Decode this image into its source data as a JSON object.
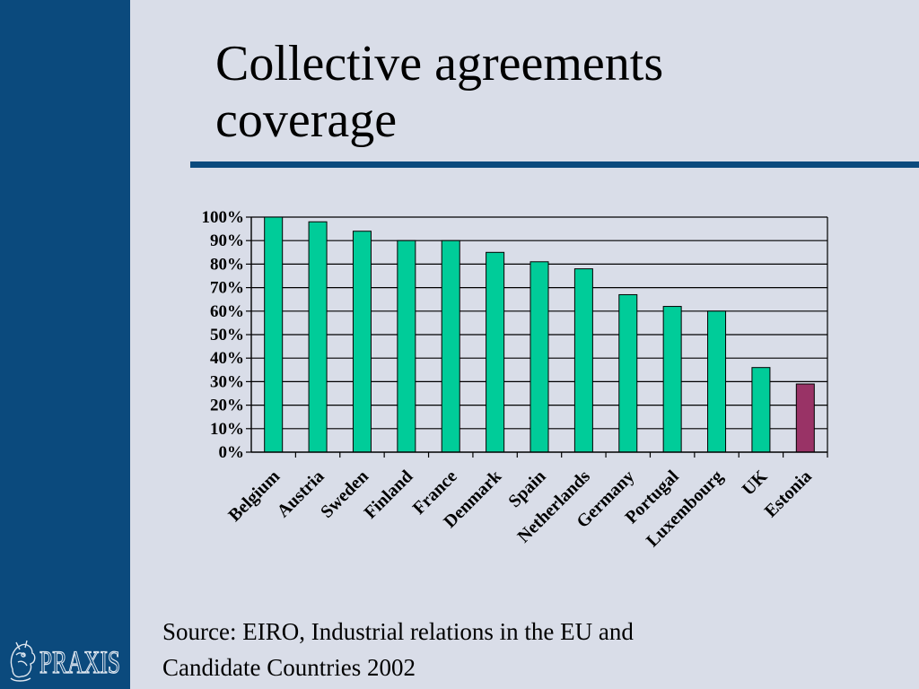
{
  "slide": {
    "title_lines": [
      "Collective agreements",
      "coverage"
    ],
    "source_lines": [
      "Source: EIRO, Industrial relations in the EU and",
      "Candidate Countries 2002"
    ],
    "logo_text": "PRAXIS"
  },
  "colors": {
    "background": "#d9dde8",
    "sidebar": "#0b4a7d",
    "bar_default": "#00cc99",
    "bar_highlight": "#993366"
  },
  "chart_data": {
    "type": "bar",
    "categories": [
      "Belgium",
      "Austria",
      "Sweden",
      "Finland",
      "France",
      "Denmark",
      "Spain",
      "Netherlands",
      "Germany",
      "Portugal",
      "Luxembourg",
      "UK",
      "Estonia"
    ],
    "values": [
      100,
      98,
      94,
      90,
      90,
      85,
      81,
      78,
      67,
      62,
      60,
      36,
      29
    ],
    "highlight": [
      "Estonia"
    ],
    "ylim": [
      0,
      100
    ],
    "yticks": [
      "0%",
      "10%",
      "20%",
      "30%",
      "40%",
      "50%",
      "60%",
      "70%",
      "80%",
      "90%",
      "100%"
    ],
    "grid": true,
    "legend": "none"
  }
}
